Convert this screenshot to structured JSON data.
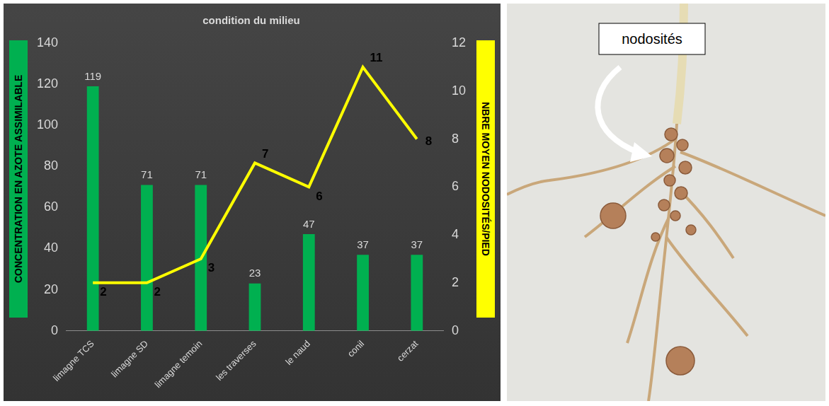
{
  "chart_data": {
    "type": "bar",
    "title": "condition du milieu",
    "categories": [
      "limagne TCS",
      "limagne SD",
      "limagne temoin",
      "les traverses",
      "le naud",
      "conil",
      "cerzat"
    ],
    "series": [
      {
        "type": "bar",
        "color": "#00b050",
        "axis": "y",
        "values": [
          119,
          71,
          71,
          23,
          47,
          37,
          37
        ]
      },
      {
        "type": "line",
        "color": "#ffff00",
        "axis": "y2",
        "marker": "none",
        "line_style": "solid",
        "values": [
          2,
          2,
          3,
          7,
          6,
          11,
          8
        ]
      }
    ],
    "y_label": "CONCENTRATION EN AZOTE ASSIMILABLE",
    "y2_label": "NBRE MOYEN NODOSITÉS/PIED",
    "ylim": [
      0,
      140
    ],
    "yticks": [
      0,
      20,
      40,
      60,
      80,
      100,
      120,
      140
    ],
    "y2lim": [
      0,
      12
    ],
    "y2ticks": [
      0,
      2,
      4,
      6,
      8,
      10,
      12
    ],
    "grid": false,
    "data_labels": true
  },
  "photo": {
    "label": "nodosités"
  }
}
